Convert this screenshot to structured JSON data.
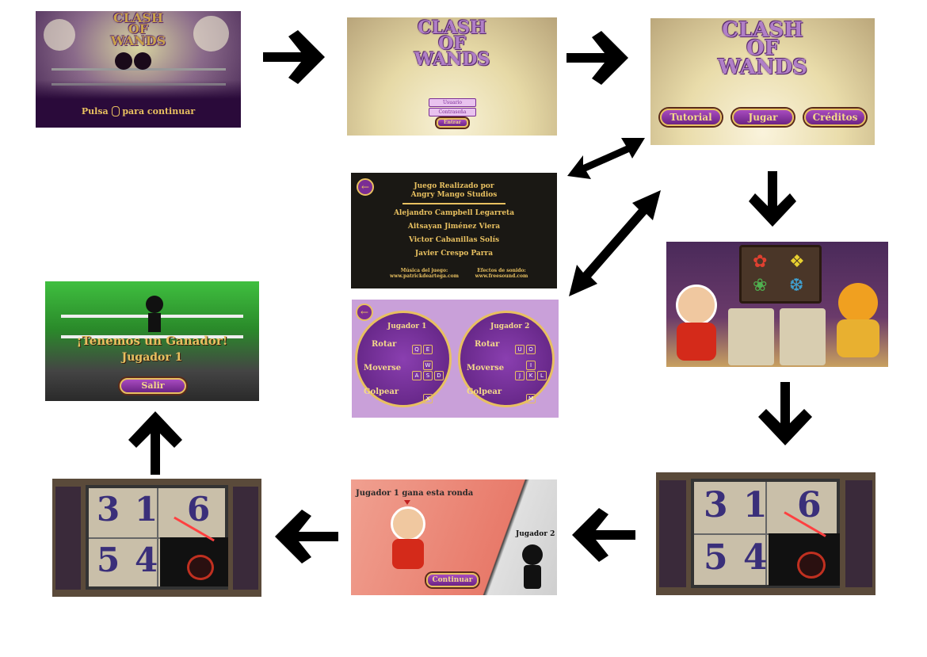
{
  "logo": {
    "line1": "CLASH",
    "line2": "OF",
    "line3": "WANDS"
  },
  "splash": {
    "prompt": "Pulsa",
    "prompt_icon": "mouse-icon",
    "prompt_suffix": "para continuar"
  },
  "login": {
    "user_label": "Usuario",
    "password_label": "Contraseña",
    "submit_label": "Entrar"
  },
  "main_menu": {
    "tutorial": "Tutorial",
    "play": "Jugar",
    "credits": "Créditos"
  },
  "credits": {
    "title1": "Juego Realizado por",
    "title2": "Angry Mango Studios",
    "names": [
      "Alejandro Campbell Legarreta",
      "Aitsayan Jiménez Viera",
      "Victor Cabanillas Solís",
      "Javier Crespo Parra"
    ],
    "music_label": "Música del juego:",
    "music_url": "www.patrickdeartega.com",
    "sfx_label": "Efectos de sonido:",
    "sfx_url": "www.freesound.com"
  },
  "controls": {
    "p1": {
      "title": "Jugador 1",
      "rotate": "Rotar",
      "move": "Moverse",
      "hit": "Golpear",
      "rotate_keys": [
        "Q",
        "E"
      ],
      "move_keys_top": [
        "W"
      ],
      "move_keys_bottom": [
        "A",
        "S",
        "D"
      ],
      "hit_keys": [
        "X"
      ]
    },
    "p2": {
      "title": "Jugador 2",
      "rotate": "Rotar",
      "move": "Moverse",
      "hit": "Golpear",
      "rotate_keys": [
        "U",
        "O"
      ],
      "move_keys_top": [
        "I"
      ],
      "move_keys_bottom": [
        "J",
        "K",
        "L"
      ],
      "hit_keys": [
        "M"
      ]
    }
  },
  "board": {
    "numbers": [
      "3",
      "1",
      "6",
      "5",
      "4"
    ]
  },
  "round": {
    "banner": "Jugador 1 gana esta ronda",
    "continue": "Continuar",
    "loser_label": "Jugador 2"
  },
  "winner": {
    "title": "¡Tenemos un Ganador!",
    "player": "Jugador 1",
    "exit": "Salir"
  },
  "colors": {
    "gold": "#e8c060",
    "purple": "#7a2d94",
    "arrow": "#000000"
  }
}
